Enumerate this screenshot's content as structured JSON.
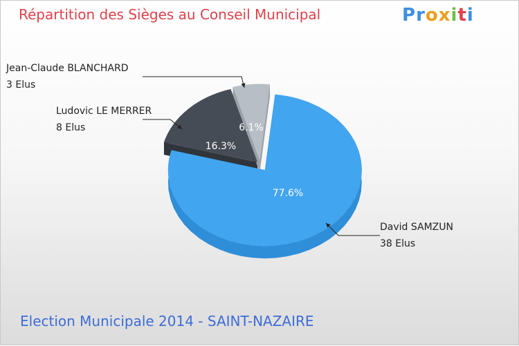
{
  "header": {
    "title": "Répartition des Sièges au Conseil Municipal",
    "logo": [
      "P",
      "r",
      "o",
      "x",
      "i",
      "t",
      "i"
    ]
  },
  "footer": {
    "subtitle": "Election Municipale 2014 - SAINT-NAZAIRE"
  },
  "chart_data": {
    "type": "pie",
    "title": "Répartition des Sièges au Conseil Municipal",
    "categories": [
      "David SAMZUN",
      "Ludovic LE MERRER",
      "Jean-Claude BLANCHARD"
    ],
    "values": [
      38,
      8,
      3
    ],
    "seat_labels": [
      "38 Elus",
      "8 Elus",
      "3 Elus"
    ],
    "percent_labels": [
      "77.6%",
      "16.3%",
      "6.1%"
    ],
    "colors": [
      "#42a5f0",
      "#464c55",
      "#b8bec6"
    ],
    "side_colors": [
      "#2f8ed8",
      "#30353c",
      "#9ba1a9"
    ]
  }
}
